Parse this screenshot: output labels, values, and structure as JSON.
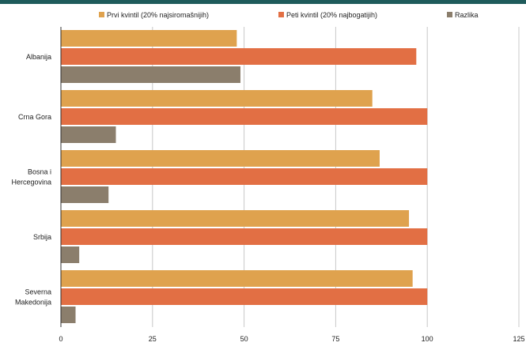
{
  "chart_data": {
    "type": "bar",
    "orientation": "horizontal",
    "title": "",
    "xlabel": "",
    "ylabel": "",
    "categories": [
      [
        "Albanija"
      ],
      [
        "Crna Gora"
      ],
      [
        "Bosna i",
        "Hercegovina"
      ],
      [
        "Srbija"
      ],
      [
        "Severna",
        "Makedonija"
      ]
    ],
    "series": [
      {
        "name": "Prvi kvintil (20% najsiromašnijih)",
        "color": "#dfa24e",
        "values": [
          48,
          85,
          87,
          95,
          96
        ]
      },
      {
        "name": "Peti kvintil (20% najbogatijih)",
        "color": "#e26f44",
        "values": [
          97,
          100,
          100,
          100,
          100
        ]
      },
      {
        "name": "Razlika",
        "color": "#8b7e6c",
        "values": [
          49,
          15,
          13,
          5,
          4
        ]
      }
    ],
    "xlim": [
      0,
      125
    ],
    "xticks": [
      "0",
      "25",
      "50",
      "75",
      "100",
      "125"
    ],
    "grid": true,
    "legend_position": "top"
  }
}
